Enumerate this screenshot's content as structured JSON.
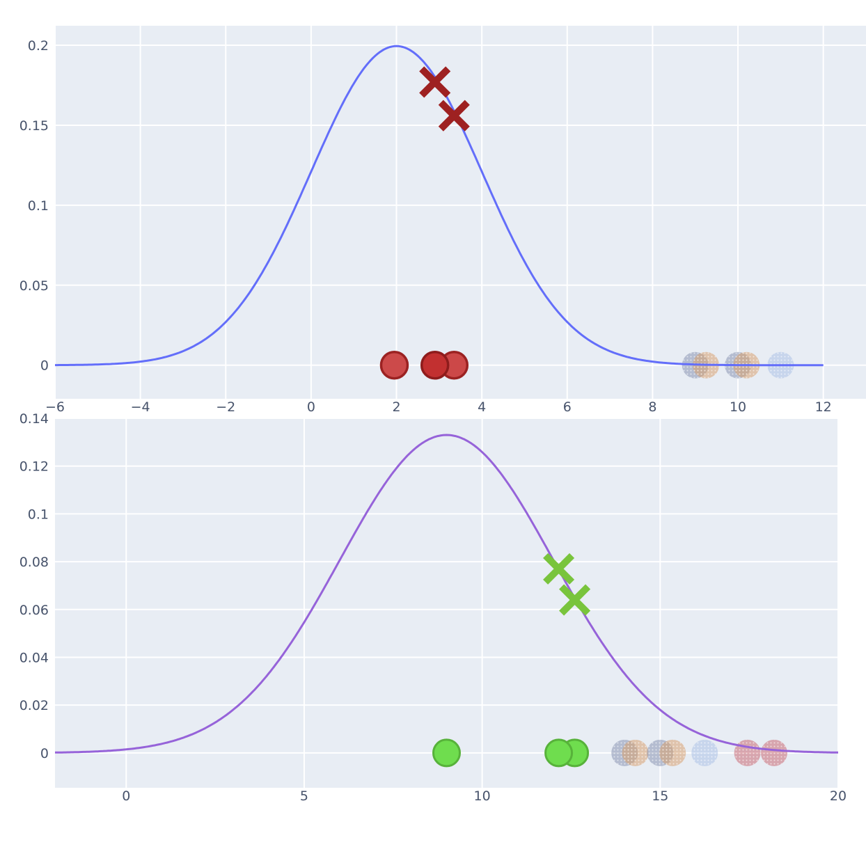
{
  "page": {
    "background_color": "#ffffff",
    "plot_background_color": "#e8edf4",
    "grid_color": "#ffffff",
    "tick_label_color": "#47536b"
  },
  "chart_data": [
    {
      "type": "line",
      "title": "",
      "xlabel": "",
      "ylabel": "",
      "legend": "none",
      "grid": true,
      "plot_bg": "#e8edf4",
      "grid_color": "#ffffff",
      "tick_color": "#47536b",
      "xlim": [
        -6,
        13.0
      ],
      "ylim": [
        -0.021,
        0.2122
      ],
      "x_ticks": [
        -6,
        -4,
        -2,
        0,
        2,
        4,
        6,
        8,
        10,
        12
      ],
      "x_tick_labels": [
        "−6",
        "−4",
        "−2",
        "0",
        "2",
        "4",
        "6",
        "8",
        "10",
        "12"
      ],
      "y_ticks": [
        0,
        0.05,
        0.1,
        0.15,
        0.2
      ],
      "y_tick_labels": [
        "0",
        "0.05",
        "0.1",
        "0.15",
        "0.2"
      ],
      "curve": {
        "kind": "gaussian-pdf",
        "mean": 2,
        "sigma": 2,
        "peak": 0.1995,
        "x_start": -6,
        "x_end": 12,
        "color": "#636efa",
        "width": 3
      },
      "cross_markers": {
        "label": "points-on-curve",
        "color": "#9e2121",
        "half_size": 19,
        "stroke_width": 10,
        "points": [
          {
            "x": 2.9,
            "y": 0.177
          },
          {
            "x": 3.35,
            "y": 0.156
          }
        ]
      },
      "sample_markers": {
        "label": "current-samples",
        "radius": 19,
        "stroke_width": 3.5,
        "points": [
          {
            "x": 3.35,
            "y": 0,
            "fill": "#cc4848",
            "stroke": "#9b2222"
          },
          {
            "x": 1.95,
            "y": 0,
            "fill": "#cc4a4a",
            "stroke": "#9b2222"
          },
          {
            "x": 2.9,
            "y": 0,
            "fill": "#c23030",
            "stroke": "#8e1c1c"
          }
        ]
      },
      "faded_markers": {
        "label": "previous-samples",
        "radius": 19,
        "points": [
          {
            "x": 9.0,
            "y": 0,
            "fill": "rgba(128,140,172,0.50)"
          },
          {
            "x": 9.25,
            "y": 0,
            "fill": "rgba(214,158,106,0.52)"
          },
          {
            "x": 10.0,
            "y": 0,
            "fill": "rgba(128,140,172,0.50)"
          },
          {
            "x": 10.2,
            "y": 0,
            "fill": "rgba(214,158,106,0.52)"
          },
          {
            "x": 11.0,
            "y": 0,
            "fill": "rgba(160,183,226,0.45)"
          }
        ]
      }
    },
    {
      "type": "line",
      "title": "",
      "xlabel": "",
      "ylabel": "",
      "legend": "none",
      "grid": true,
      "plot_bg": "#e8edf4",
      "grid_color": "#ffffff",
      "tick_color": "#47536b",
      "xlim": [
        -2,
        20
      ],
      "ylim": [
        -0.0146,
        0.14
      ],
      "x_ticks": [
        0,
        5,
        10,
        15,
        20
      ],
      "x_tick_labels": [
        "0",
        "5",
        "10",
        "15",
        "20"
      ],
      "y_ticks": [
        0,
        0.02,
        0.04,
        0.06,
        0.08,
        0.1,
        0.12,
        0.14
      ],
      "y_tick_labels": [
        "0",
        "0.02",
        "0.04",
        "0.06",
        "0.08",
        "0.1",
        "0.12",
        "0.14"
      ],
      "curve": {
        "kind": "gaussian-pdf",
        "mean": 9,
        "sigma": 3,
        "peak": 0.133,
        "x_start": -2,
        "x_end": 20,
        "color": "#9663d9",
        "width": 3
      },
      "cross_markers": {
        "label": "points-on-curve",
        "color": "#79c43c",
        "half_size": 19,
        "stroke_width": 10,
        "points": [
          {
            "x": 12.15,
            "y": 0.077
          },
          {
            "x": 12.6,
            "y": 0.064
          }
        ]
      },
      "sample_markers": {
        "label": "current-samples",
        "radius": 19,
        "stroke_width": 3,
        "points": [
          {
            "x": 12.6,
            "y": 0,
            "fill": "#6fdd4e",
            "stroke": "#57b23a"
          },
          {
            "x": 9.0,
            "y": 0,
            "fill": "#6fdd4e",
            "stroke": "#57b23a"
          },
          {
            "x": 12.15,
            "y": 0,
            "fill": "#6fdd4e",
            "stroke": "#57b23a"
          }
        ]
      },
      "faded_markers": {
        "label": "previous-samples",
        "radius": 19,
        "points": [
          {
            "x": 14.0,
            "y": 0,
            "fill": "rgba(128,140,172,0.50)"
          },
          {
            "x": 14.3,
            "y": 0,
            "fill": "rgba(214,158,106,0.52)"
          },
          {
            "x": 15.0,
            "y": 0,
            "fill": "rgba(128,140,172,0.50)"
          },
          {
            "x": 15.35,
            "y": 0,
            "fill": "rgba(214,158,106,0.52)"
          },
          {
            "x": 16.25,
            "y": 0,
            "fill": "rgba(160,183,226,0.45)"
          },
          {
            "x": 17.45,
            "y": 0,
            "fill": "rgba(201,106,116,0.55)"
          },
          {
            "x": 18.2,
            "y": 0,
            "fill": "rgba(201,106,116,0.55)"
          }
        ]
      }
    }
  ]
}
